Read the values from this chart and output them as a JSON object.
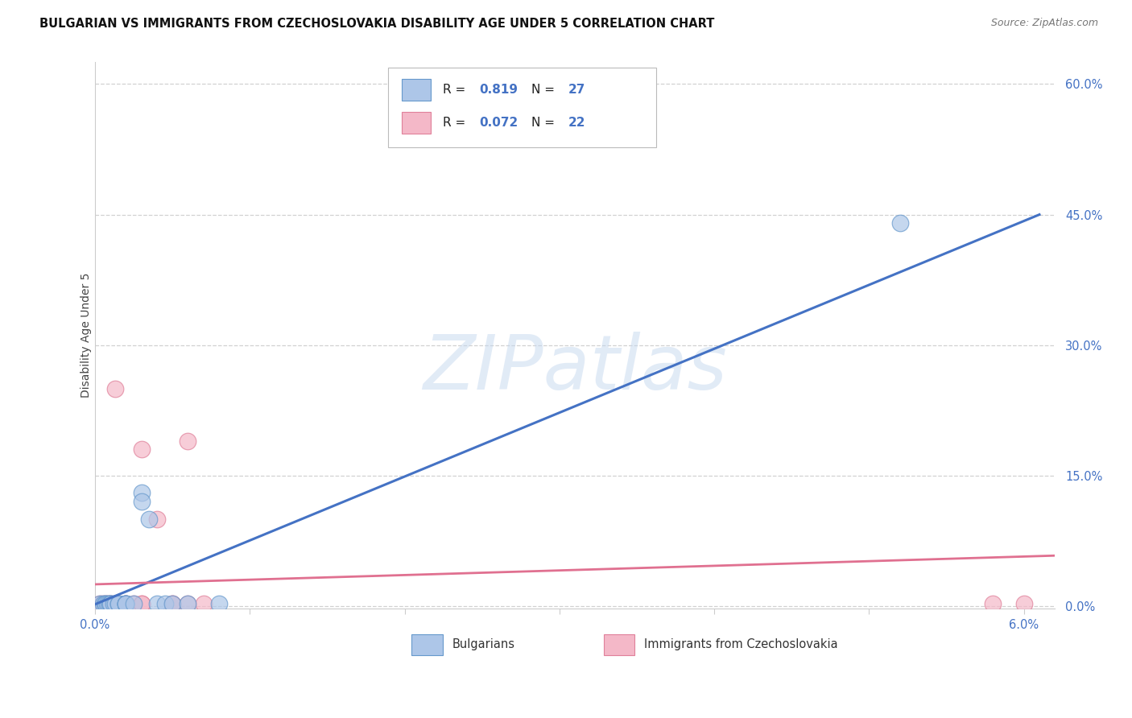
{
  "title": "BULGARIAN VS IMMIGRANTS FROM CZECHOSLOVAKIA DISABILITY AGE UNDER 5 CORRELATION CHART",
  "source": "Source: ZipAtlas.com",
  "ylabel": "Disability Age Under 5",
  "watermark": "ZIPatlas",
  "xlim": [
    0.0,
    0.062
  ],
  "ylim": [
    -0.003,
    0.625
  ],
  "xtick_positions": [
    0.0,
    0.01,
    0.02,
    0.03,
    0.04,
    0.05,
    0.06
  ],
  "xtick_labels_show": {
    "0.0": "0.0%",
    "0.06": "6.0%"
  },
  "ytick_positions": [
    0.0,
    0.15,
    0.3,
    0.45,
    0.6
  ],
  "ytick_labels": [
    "0.0%",
    "15.0%",
    "30.0%",
    "45.0%",
    "60.0%"
  ],
  "legend_blue_r_val": "0.819",
  "legend_blue_n_val": "27",
  "legend_pink_r_val": "0.072",
  "legend_pink_n_val": "22",
  "blue_label": "Bulgarians",
  "pink_label": "Immigrants from Czechoslovakia",
  "blue_fill_color": "#adc6e8",
  "pink_fill_color": "#f4b8c8",
  "blue_edge_color": "#6699cc",
  "pink_edge_color": "#e0809a",
  "blue_line_color": "#4472c4",
  "pink_line_color": "#e07090",
  "tick_label_color": "#4472c4",
  "blue_scatter_x": [
    0.0003,
    0.0005,
    0.0006,
    0.0007,
    0.0008,
    0.0009,
    0.001,
    0.001,
    0.001,
    0.0012,
    0.0013,
    0.0015,
    0.0015,
    0.002,
    0.002,
    0.002,
    0.002,
    0.0025,
    0.003,
    0.003,
    0.0035,
    0.004,
    0.0045,
    0.005,
    0.006,
    0.008,
    0.052
  ],
  "blue_scatter_y": [
    0.003,
    0.003,
    0.003,
    0.003,
    0.003,
    0.003,
    0.003,
    0.003,
    0.003,
    0.003,
    0.003,
    0.003,
    0.003,
    0.003,
    0.003,
    0.003,
    0.003,
    0.003,
    0.13,
    0.12,
    0.1,
    0.003,
    0.003,
    0.003,
    0.003,
    0.003,
    0.44
  ],
  "pink_scatter_x": [
    0.0003,
    0.0005,
    0.0007,
    0.0008,
    0.001,
    0.001,
    0.0013,
    0.0015,
    0.002,
    0.002,
    0.0025,
    0.003,
    0.003,
    0.003,
    0.004,
    0.005,
    0.005,
    0.006,
    0.006,
    0.007,
    0.058,
    0.06
  ],
  "pink_scatter_y": [
    0.003,
    0.003,
    0.003,
    0.003,
    0.003,
    0.003,
    0.25,
    0.003,
    0.003,
    0.003,
    0.003,
    0.18,
    0.003,
    0.003,
    0.1,
    0.003,
    0.003,
    0.19,
    0.003,
    0.003,
    0.003,
    0.003
  ],
  "blue_line_x": [
    0.0,
    0.061
  ],
  "blue_line_y": [
    0.002,
    0.45
  ],
  "pink_line_x": [
    0.0,
    0.062
  ],
  "pink_line_y": [
    0.025,
    0.058
  ],
  "grid_color": "#cccccc",
  "background_color": "#ffffff"
}
